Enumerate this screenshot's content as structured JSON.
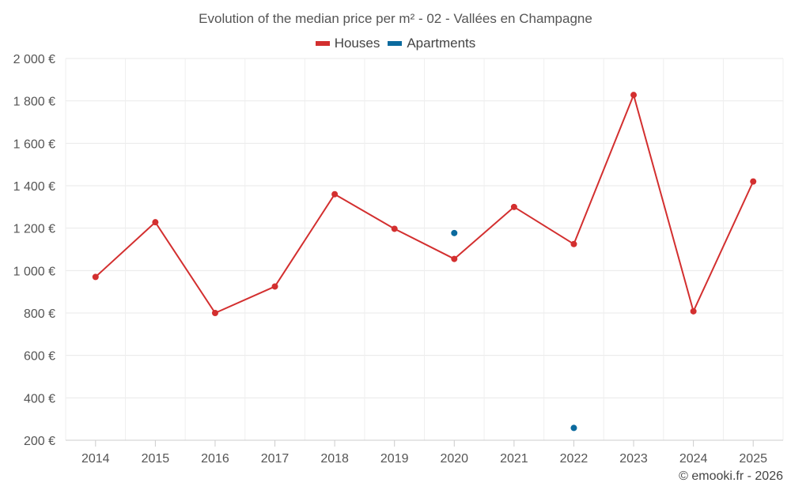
{
  "chart_data": {
    "type": "line",
    "title": "Evolution of the median price per m² - 02 - Vallées en Champagne",
    "categories": [
      "2014",
      "2015",
      "2016",
      "2017",
      "2018",
      "2019",
      "2020",
      "2021",
      "2022",
      "2023",
      "2024",
      "2025"
    ],
    "series": [
      {
        "name": "Houses",
        "color": "#d32f2f",
        "style": "line",
        "values": [
          970,
          1228,
          800,
          925,
          1360,
          1197,
          1055,
          1300,
          1125,
          1828,
          808,
          1420
        ]
      },
      {
        "name": "Apartments",
        "color": "#0b6a9e",
        "style": "points",
        "values": [
          null,
          null,
          null,
          null,
          null,
          null,
          1177,
          null,
          258,
          null,
          null,
          null
        ]
      }
    ],
    "yticks": [
      200,
      400,
      600,
      800,
      1000,
      1200,
      1400,
      1600,
      1800,
      2000
    ],
    "ytick_labels": [
      "200 €",
      "400 €",
      "600 €",
      "800 €",
      "1 000 €",
      "1 200 €",
      "1 400 €",
      "1 600 €",
      "1 800 €",
      "2 000 €"
    ],
    "ylim": [
      200,
      2000
    ],
    "grid": true,
    "legend_position": "top-center"
  },
  "footer": "© emooki.fr - 2026"
}
